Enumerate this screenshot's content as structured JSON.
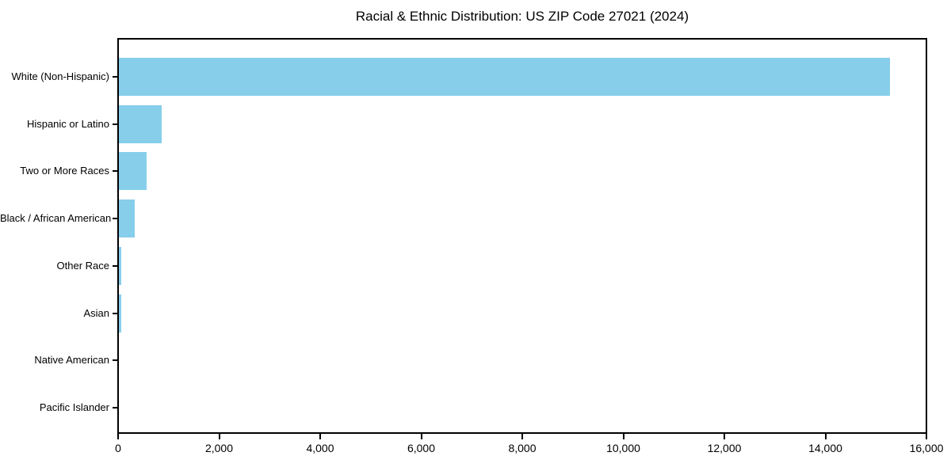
{
  "chart_data": {
    "type": "bar",
    "orientation": "horizontal",
    "title": "Racial & Ethnic Distribution: US ZIP Code 27021 (2024)",
    "categories": [
      "White (Non-Hispanic)",
      "Hispanic or Latino",
      "Two or More Races",
      "Black / African American",
      "Other Race",
      "Asian",
      "Native American",
      "Pacific Islander"
    ],
    "values": [
      15300,
      850,
      550,
      320,
      45,
      55,
      0,
      0
    ],
    "xlabel": "",
    "ylabel": "",
    "xlim": [
      0,
      16000
    ],
    "x_ticks": [
      0,
      2000,
      4000,
      6000,
      8000,
      10000,
      12000,
      14000,
      16000
    ],
    "x_tick_labels": [
      "0",
      "2,000",
      "4,000",
      "6,000",
      "8,000",
      "10,000",
      "12,000",
      "14,000",
      "16,000"
    ],
    "bar_color": "#87CEEB",
    "axis_color": "#000000",
    "background_color": "#ffffff",
    "grid": false,
    "legend": null
  }
}
